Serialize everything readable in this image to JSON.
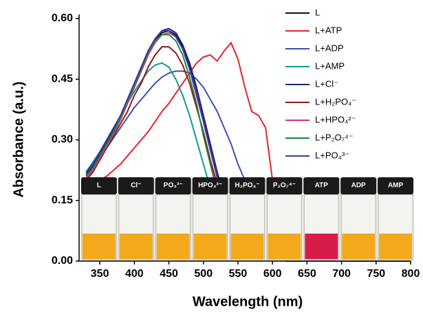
{
  "chart_data": {
    "type": "line",
    "xlabel": "Wavelength (nm)",
    "ylabel": "Absorbance (a.u.)",
    "xlim": [
      320,
      800
    ],
    "xticks": [
      350,
      400,
      450,
      500,
      550,
      600,
      650,
      700,
      750,
      800
    ],
    "ylim": [
      0,
      0.6
    ],
    "yticks": [
      {
        "value": 0,
        "label": "0.00"
      },
      {
        "value": 0.15,
        "label": "0.15"
      },
      {
        "value": 0.3,
        "label": "0.30"
      },
      {
        "value": 0.45,
        "label": "0.45"
      },
      {
        "value": 0.6,
        "label": "0.60"
      }
    ],
    "x": [
      330,
      340,
      350,
      360,
      370,
      380,
      390,
      400,
      410,
      420,
      430,
      440,
      450,
      460,
      470,
      480,
      490,
      500,
      510,
      520,
      530,
      540,
      550,
      560,
      570,
      580,
      590,
      600,
      610,
      620,
      630,
      640,
      650,
      660,
      670,
      680,
      690,
      700,
      750,
      800
    ],
    "series": [
      {
        "name": "L",
        "color": "#111111",
        "values": [
          0.21,
          0.23,
          0.26,
          0.29,
          0.32,
          0.35,
          0.39,
          0.43,
          0.47,
          0.51,
          0.545,
          0.565,
          0.57,
          0.56,
          0.53,
          0.48,
          0.42,
          0.35,
          0.28,
          0.21,
          0.15,
          0.1,
          0.07,
          0.05,
          0.04,
          0.035,
          0.02,
          0.01,
          0.005,
          0,
          0,
          0,
          0,
          0,
          0,
          0,
          0,
          0,
          0,
          0
        ]
      },
      {
        "name": "L+ATP",
        "color": "#e8202a",
        "values": [
          0.19,
          0.195,
          0.2,
          0.21,
          0.225,
          0.24,
          0.26,
          0.28,
          0.3,
          0.32,
          0.345,
          0.37,
          0.39,
          0.415,
          0.44,
          0.465,
          0.49,
          0.505,
          0.51,
          0.495,
          0.52,
          0.54,
          0.5,
          0.43,
          0.37,
          0.36,
          0.33,
          0.2,
          0.07,
          0.03,
          0.015,
          0.005,
          0,
          0,
          0,
          0,
          0,
          0,
          0,
          0
        ]
      },
      {
        "name": "L+ADP",
        "color": "#3a4fb0",
        "values": [
          0.21,
          0.23,
          0.255,
          0.28,
          0.305,
          0.33,
          0.355,
          0.38,
          0.4,
          0.42,
          0.44,
          0.455,
          0.465,
          0.47,
          0.47,
          0.465,
          0.45,
          0.43,
          0.4,
          0.37,
          0.33,
          0.29,
          0.24,
          0.2,
          0.16,
          0.1,
          0.05,
          0.02,
          0.01,
          0,
          0,
          0,
          0,
          0,
          0,
          0,
          0,
          0,
          0,
          0
        ]
      },
      {
        "name": "L+AMP",
        "color": "#129a8a",
        "values": [
          0.22,
          0.245,
          0.27,
          0.3,
          0.33,
          0.36,
          0.39,
          0.42,
          0.445,
          0.47,
          0.485,
          0.49,
          0.48,
          0.45,
          0.41,
          0.36,
          0.3,
          0.24,
          0.18,
          0.13,
          0.09,
          0.07,
          0.05,
          0.04,
          0.035,
          0.03,
          0.02,
          0.01,
          0.005,
          0,
          0,
          0,
          0,
          0,
          0,
          0,
          0,
          0,
          0,
          0
        ]
      },
      {
        "name": "L+Cl⁻",
        "color": "#1a237e",
        "values": [
          0.215,
          0.235,
          0.265,
          0.295,
          0.325,
          0.36,
          0.4,
          0.44,
          0.48,
          0.52,
          0.55,
          0.57,
          0.575,
          0.565,
          0.535,
          0.49,
          0.43,
          0.36,
          0.29,
          0.22,
          0.16,
          0.11,
          0.075,
          0.05,
          0.04,
          0.035,
          0.02,
          0.01,
          0.005,
          0,
          0,
          0,
          0,
          0,
          0,
          0,
          0,
          0,
          0,
          0
        ]
      },
      {
        "name": "L+H₂PO₄⁻",
        "color": "#8b1a1a",
        "values": [
          0.2,
          0.22,
          0.25,
          0.28,
          0.31,
          0.34,
          0.37,
          0.41,
          0.44,
          0.48,
          0.51,
          0.53,
          0.53,
          0.515,
          0.485,
          0.44,
          0.38,
          0.32,
          0.25,
          0.19,
          0.14,
          0.1,
          0.07,
          0.05,
          0.04,
          0.035,
          0.02,
          0.01,
          0.005,
          0,
          0,
          0,
          0,
          0,
          0,
          0,
          0,
          0,
          0,
          0
        ]
      },
      {
        "name": "L+HPO₄²⁻",
        "color": "#e0307a",
        "values": [
          0.205,
          0.225,
          0.255,
          0.285,
          0.315,
          0.35,
          0.39,
          0.43,
          0.47,
          0.51,
          0.54,
          0.56,
          0.565,
          0.555,
          0.525,
          0.475,
          0.415,
          0.345,
          0.275,
          0.205,
          0.145,
          0.095,
          0.065,
          0.045,
          0.035,
          0.03,
          0.02,
          0.01,
          0.005,
          0,
          0,
          0,
          0,
          0,
          0,
          0,
          0,
          0,
          0,
          0
        ]
      },
      {
        "name": "L+P₂O₇⁴⁻",
        "color": "#1a8a3a",
        "values": [
          0.21,
          0.23,
          0.26,
          0.29,
          0.32,
          0.355,
          0.395,
          0.435,
          0.475,
          0.515,
          0.545,
          0.56,
          0.56,
          0.545,
          0.51,
          0.455,
          0.39,
          0.31,
          0.24,
          0.17,
          0.12,
          0.08,
          0.06,
          0.045,
          0.04,
          0.035,
          0.02,
          0.01,
          0.005,
          0,
          0,
          0,
          0,
          0,
          0,
          0,
          0,
          0,
          0,
          0
        ]
      },
      {
        "name": "L+PO₄³⁻",
        "color": "#3a3aa0",
        "values": [
          0.22,
          0.24,
          0.27,
          0.3,
          0.33,
          0.36,
          0.4,
          0.44,
          0.48,
          0.52,
          0.55,
          0.57,
          0.57,
          0.555,
          0.525,
          0.475,
          0.41,
          0.345,
          0.275,
          0.21,
          0.15,
          0.105,
          0.075,
          0.055,
          0.045,
          0.04,
          0.025,
          0.01,
          0.005,
          0,
          0,
          0,
          0,
          0,
          0,
          0,
          0,
          0,
          0,
          0
        ]
      }
    ],
    "annotations": [
      "L",
      "Cl⁻",
      "PO₄³⁻",
      "HPO₄²⁻",
      "H₂PO₄⁻",
      "P₂O₇⁴⁻",
      "ATP",
      "ADP",
      "AMP"
    ]
  }
}
